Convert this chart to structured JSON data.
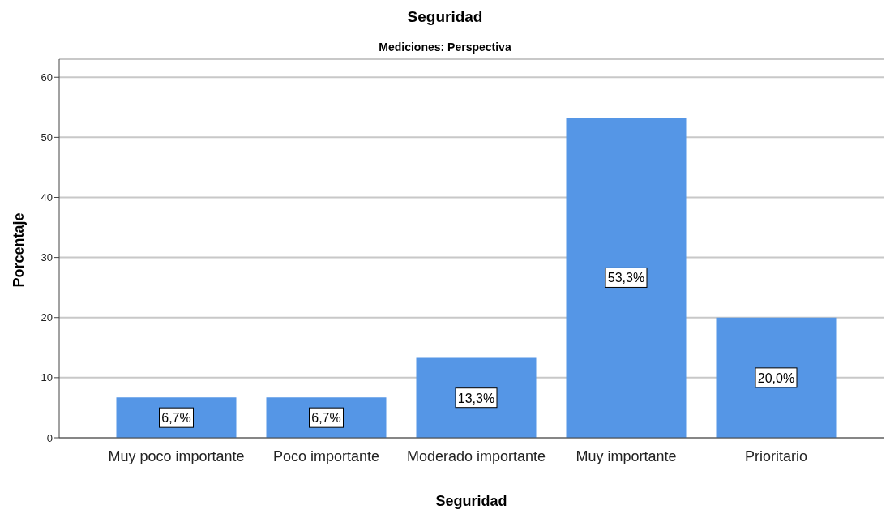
{
  "chart_data": {
    "type": "bar",
    "title": "Seguridad",
    "subtitle": "Mediciones: Perspectiva",
    "xlabel": "Seguridad",
    "ylabel": "Porcentaje",
    "categories": [
      "Muy poco importante",
      "Poco importante",
      "Moderado importante",
      "Muy importante",
      "Prioritario"
    ],
    "values": [
      6.7,
      6.7,
      13.3,
      53.3,
      20.0
    ],
    "value_labels": [
      "6,7%",
      "6,7%",
      "13,3%",
      "53,3%",
      "20,0%"
    ],
    "color": "#5596e6",
    "ylim": [
      0,
      63
    ],
    "yticks": [
      0,
      10,
      20,
      30,
      40,
      50,
      60
    ],
    "grid": "y"
  }
}
